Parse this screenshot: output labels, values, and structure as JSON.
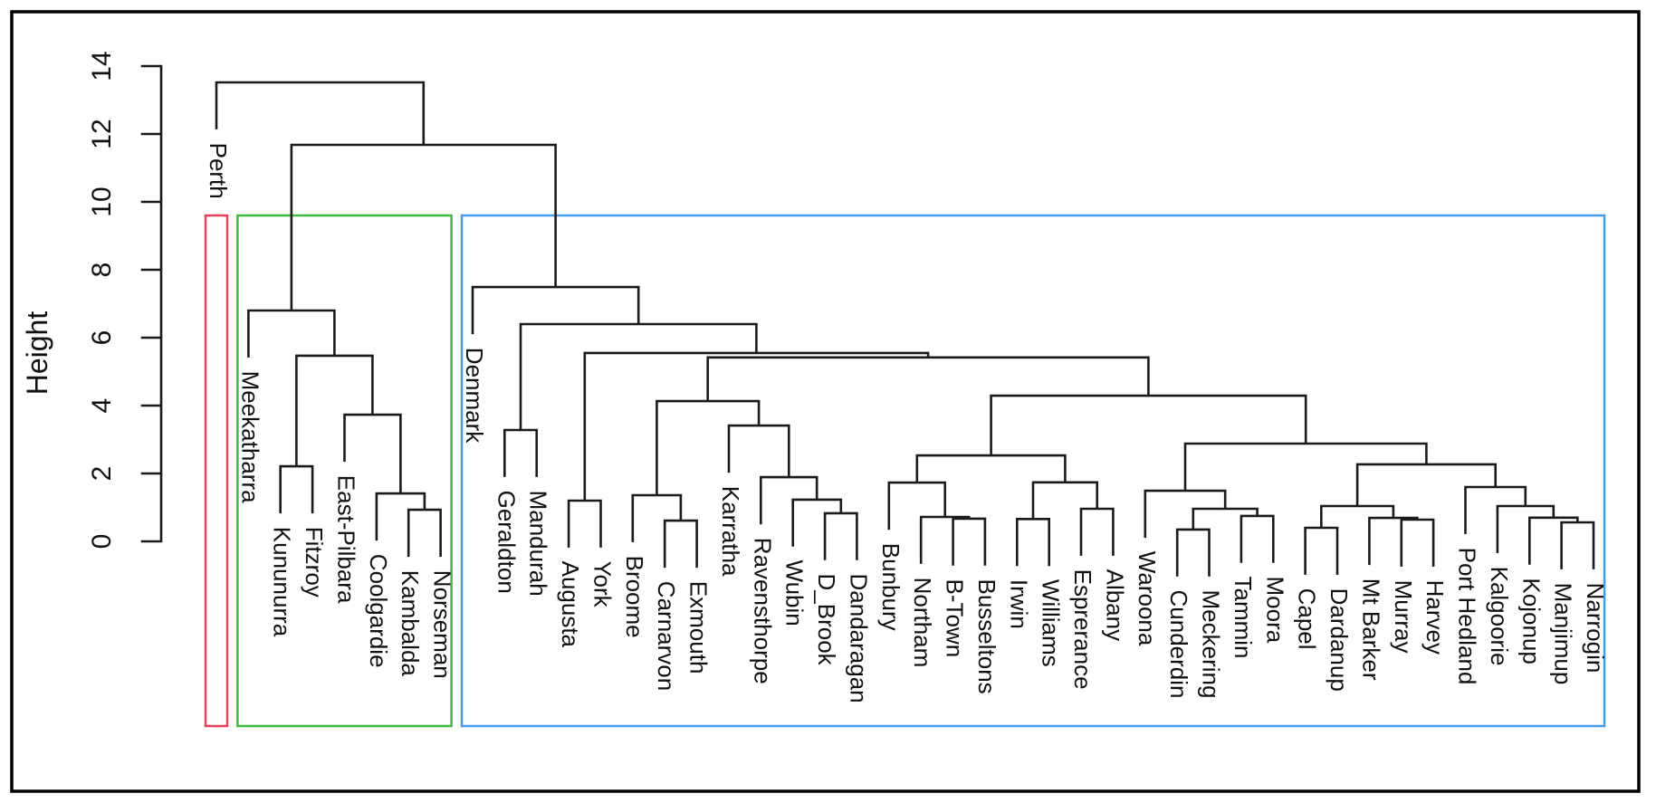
{
  "figure": {
    "kind": "R hclust dendrogram with rect.hclust cluster boxes",
    "background": "#ffffff",
    "frame_color": "#000000"
  },
  "chart_data": {
    "type": "dendrogram",
    "title": "",
    "xlabel": "",
    "ylabel": "Height",
    "ylim": [
      0,
      14
    ],
    "yticks": [
      0,
      2,
      4,
      6,
      8,
      10,
      12,
      14
    ],
    "grid": false,
    "leaf_hang": 1.35,
    "line_color": "#1a1a1a",
    "leaves": [
      "Perth",
      "Meekatharra",
      "Kununurra",
      "Fitzroy",
      "East-Pilbara",
      "Coolgardie",
      "Kambalda",
      "Norseman",
      "Denmark",
      "Geraldton",
      "Mandurah",
      "Augusta",
      "York",
      "Broome",
      "Carnarvon",
      "Exmouth",
      "Karratha",
      "Ravensthorpe",
      "Wubin",
      "D_Brook",
      "Dandaragan",
      "Bunbury",
      "Northam",
      "B-Town",
      "Busseltons",
      "Irwin",
      "Williams",
      "Esprerance",
      "Albany",
      "Waroona",
      "Cunderdin",
      "Meckering",
      "Tammin",
      "Moora",
      "Capel",
      "Dardanup",
      "Mt Barker",
      "Murray",
      "Harvey",
      "Port Hedland",
      "Kalgoorie",
      "Kojonup",
      "Manjimup",
      "Narrogin"
    ],
    "tree": {
      "h": 13.52,
      "c": [
        "Perth",
        {
          "h": 11.68,
          "c": [
            {
              "h": 6.8,
              "c": [
                "Meekatharra",
                {
                  "h": 5.47,
                  "c": [
                    {
                      "h": 2.21,
                      "c": [
                        "Kununurra",
                        "Fitzroy"
                      ]
                    },
                    {
                      "h": 3.73,
                      "c": [
                        "East-Pilbara",
                        {
                          "h": 1.41,
                          "c": [
                            "Coolgardie",
                            {
                              "h": 0.93,
                              "c": [
                                "Kambalda",
                                "Norseman"
                              ]
                            }
                          ]
                        }
                      ]
                    }
                  ]
                }
              ]
            },
            {
              "h": 7.49,
              "c": [
                "Denmark",
                {
                  "h": 6.4,
                  "c": [
                    {
                      "h": 3.28,
                      "c": [
                        "Geraldton",
                        "Mandurah"
                      ]
                    },
                    {
                      "h": 5.55,
                      "c": [
                        {
                          "h": 1.2,
                          "c": [
                            "Augusta",
                            "York"
                          ]
                        },
                        {
                          "h": 5.42,
                          "c": [
                            {
                              "h": 4.13,
                              "c": [
                                {
                                  "h": 1.36,
                                  "c": [
                                    "Broome",
                                    {
                                      "h": 0.61,
                                      "c": [
                                        "Carnarvon",
                                        "Exmouth"
                                      ]
                                    }
                                  ]
                                },
                                {
                                  "h": 3.41,
                                  "c": [
                                    "Karratha",
                                    {
                                      "h": 1.89,
                                      "c": [
                                        "Ravensthorpe",
                                        {
                                          "h": 1.23,
                                          "c": [
                                            "Wubin",
                                            {
                                              "h": 0.83,
                                              "c": [
                                                "D_Brook",
                                                "Dandaragan"
                                              ]
                                            }
                                          ]
                                        }
                                      ]
                                    }
                                  ]
                                }
                              ]
                            },
                            {
                              "h": 4.29,
                              "c": [
                                {
                                  "h": 2.53,
                                  "c": [
                                    {
                                      "h": 1.73,
                                      "c": [
                                        "Bunbury",
                                        {
                                          "h": 0.72,
                                          "c": [
                                            "Northam",
                                            {
                                              "h": 0.67,
                                              "c": [
                                                "B-Town",
                                                "Busseltons"
                                              ]
                                            }
                                          ]
                                        }
                                      ]
                                    },
                                    {
                                      "h": 1.74,
                                      "c": [
                                        {
                                          "h": 0.66,
                                          "c": [
                                            "Irwin",
                                            "Williams"
                                          ]
                                        },
                                        {
                                          "h": 0.96,
                                          "c": [
                                            "Esprerance",
                                            "Albany"
                                          ]
                                        }
                                      ]
                                    }
                                  ]
                                },
                                {
                                  "h": 2.88,
                                  "c": [
                                    {
                                      "h": 1.49,
                                      "c": [
                                        "Waroona",
                                        {
                                          "h": 0.96,
                                          "c": [
                                            {
                                              "h": 0.35,
                                              "c": [
                                                "Cunderdin",
                                                "Meckering"
                                              ]
                                            },
                                            {
                                              "h": 0.75,
                                              "c": [
                                                "Tammin",
                                                "Moora"
                                              ]
                                            }
                                          ]
                                        }
                                      ]
                                    },
                                    {
                                      "h": 2.27,
                                      "c": [
                                        {
                                          "h": 1.04,
                                          "c": [
                                            {
                                              "h": 0.4,
                                              "c": [
                                                "Capel",
                                                "Dardanup"
                                              ]
                                            },
                                            {
                                              "h": 0.69,
                                              "c": [
                                                "Mt Barker",
                                                {
                                                  "h": 0.64,
                                                  "c": [
                                                    "Murray",
                                                    "Harvey"
                                                  ]
                                                }
                                              ]
                                            }
                                          ]
                                        },
                                        {
                                          "h": 1.6,
                                          "c": [
                                            "Port Hedland",
                                            {
                                              "h": 1.04,
                                              "c": [
                                                "Kalgoorie",
                                                {
                                                  "h": 0.7,
                                                  "c": [
                                                    "Kojonup",
                                                    {
                                                      "h": 0.56,
                                                      "c": [
                                                        "Manjimup",
                                                        "Narrogin"
                                                      ]
                                                    }
                                                  ]
                                                }
                                              ]
                                            }
                                          ]
                                        }
                                      ]
                                    }
                                  ]
                                }
                              ]
                            }
                          ]
                        }
                      ]
                    }
                  ]
                }
              ]
            }
          ]
        }
      ]
    },
    "clusters": [
      {
        "name": "cluster-1",
        "color": "#ef4158",
        "from_leaf": 0,
        "to_leaf": 0,
        "cut_height": 9.6
      },
      {
        "name": "cluster-2",
        "color": "#3dbc3d",
        "from_leaf": 1,
        "to_leaf": 7,
        "cut_height": 9.6
      },
      {
        "name": "cluster-3",
        "color": "#449ceb",
        "from_leaf": 8,
        "to_leaf": 43,
        "cut_height": 9.6
      }
    ],
    "legend": null
  }
}
